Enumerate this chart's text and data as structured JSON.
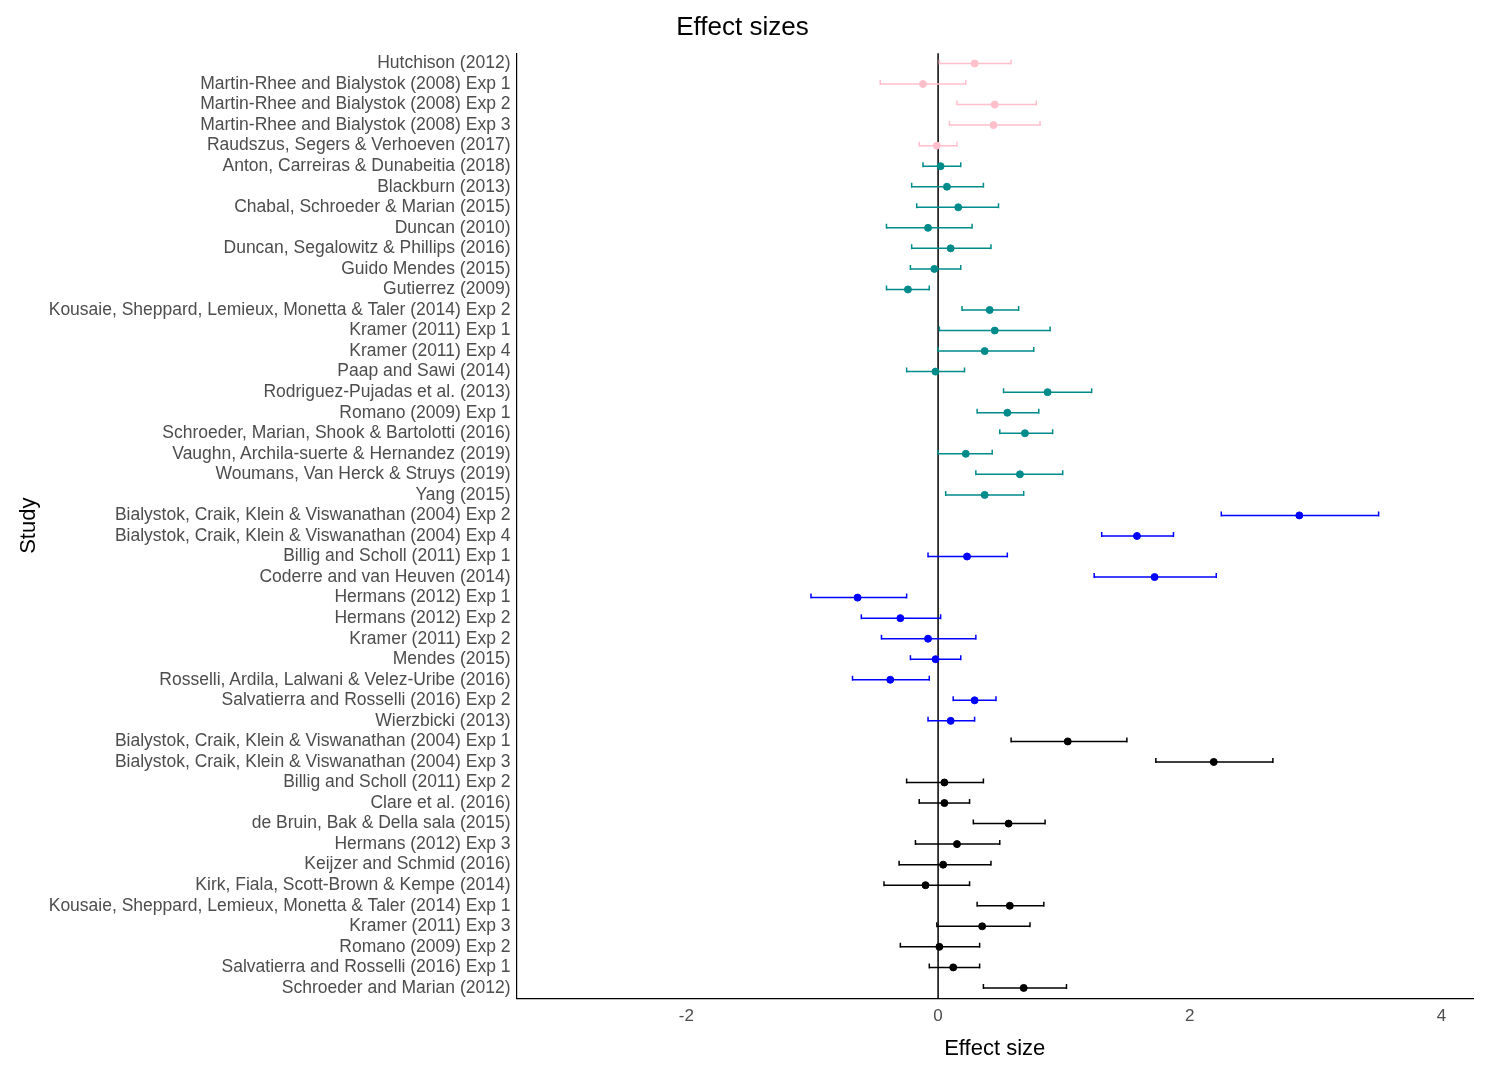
{
  "chart_data": {
    "type": "scatter",
    "title": "Effect sizes",
    "xlabel": "Effect size",
    "ylabel": "Study",
    "orientation": "horizontal",
    "marker": "circle",
    "grid": false,
    "legend": false,
    "categories": [
      "Hutchison (2012)",
      "Martin-Rhee and Bialystok (2008) Exp 1",
      "Martin-Rhee and Bialystok (2008) Exp 2",
      "Martin-Rhee and Bialystok (2008) Exp 3",
      "Raudszus, Segers & Verhoeven (2017)",
      "Anton, Carreiras & Dunabeitia (2018)",
      "Blackburn (2013)",
      "Chabal, Schroeder & Marian (2015)",
      "Duncan (2010)",
      "Duncan, Segalowitz & Phillips (2016)",
      "Guido Mendes (2015)",
      "Gutierrez (2009)",
      "Kousaie, Sheppard, Lemieux, Monetta & Taler (2014) Exp 2",
      "Kramer (2011) Exp 1",
      "Kramer (2011) Exp 4",
      "Paap and Sawi (2014)",
      "Rodriguez-Pujadas et al. (2013)",
      "Romano (2009) Exp 1",
      "Schroeder, Marian, Shook & Bartolotti (2016)",
      "Vaughn, Archila-suerte & Hernandez (2019)",
      "Woumans, Van Herck & Struys (2019)",
      "Yang (2015)",
      "Bialystok, Craik, Klein & Viswanathan (2004) Exp 2",
      "Bialystok, Craik, Klein & Viswanathan (2004) Exp 4",
      "Billig and Scholl (2011) Exp 1",
      "Coderre and van Heuven (2014)",
      "Hermans (2012) Exp 1",
      "Hermans (2012) Exp 2",
      "Kramer (2011) Exp 2",
      "Mendes (2015)",
      "Rosselli, Ardila, Lalwani & Velez-Uribe (2016)",
      "Salvatierra and Rosselli (2016) Exp 2",
      "Wierzbicki (2013)",
      "Bialystok, Craik, Klein & Viswanathan (2004) Exp 1",
      "Bialystok, Craik, Klein & Viswanathan (2004) Exp 3",
      "Billig and Scholl (2011) Exp 2",
      "Clare et al. (2016)",
      "de Bruin, Bak & Della sala (2015)",
      "Hermans (2012) Exp 3",
      "Keijzer and Schmid (2016)",
      "Kirk, Fiala, Scott-Brown & Kempe (2014)",
      "Kousaie, Sheppard, Lemieux, Monetta & Taler (2014) Exp 1",
      "Kramer (2011) Exp 3",
      "Romano (2009) Exp 2",
      "Salvatierra and Rosselli (2016) Exp 1",
      "Schroeder and Marian (2012)"
    ],
    "values": [
      0.29,
      -0.12,
      0.45,
      0.44,
      -0.01,
      0.02,
      0.07,
      0.16,
      -0.08,
      0.1,
      -0.03,
      -0.24,
      0.41,
      0.45,
      0.37,
      -0.02,
      0.87,
      0.55,
      0.69,
      0.22,
      0.65,
      0.37,
      2.87,
      1.58,
      0.23,
      1.72,
      -0.64,
      -0.3,
      -0.08,
      -0.02,
      -0.38,
      0.29,
      0.1,
      1.03,
      2.19,
      0.05,
      0.05,
      0.56,
      0.15,
      0.04,
      -0.1,
      0.57,
      0.35,
      0.01,
      0.12,
      0.68
    ],
    "errors": [
      [
        0.01,
        0.58
      ],
      [
        -0.46,
        0.22
      ],
      [
        0.15,
        0.78
      ],
      [
        0.09,
        0.81
      ],
      [
        -0.15,
        0.15
      ],
      [
        -0.12,
        0.18
      ],
      [
        -0.21,
        0.36
      ],
      [
        -0.17,
        0.48
      ],
      [
        -0.41,
        0.27
      ],
      [
        -0.21,
        0.42
      ],
      [
        -0.22,
        0.18
      ],
      [
        -0.41,
        -0.07
      ],
      [
        0.19,
        0.64
      ],
      [
        0.01,
        0.89
      ],
      [
        0,
        0.76
      ],
      [
        -0.25,
        0.21
      ],
      [
        0.52,
        1.22
      ],
      [
        0.31,
        0.8
      ],
      [
        0.49,
        0.91
      ],
      [
        0,
        0.43
      ],
      [
        0.3,
        0.99
      ],
      [
        0.06,
        0.68
      ],
      [
        2.25,
        3.5
      ],
      [
        1.3,
        1.87
      ],
      [
        -0.08,
        0.55
      ],
      [
        1.24,
        2.21
      ],
      [
        -1.01,
        -0.25
      ],
      [
        -0.61,
        0.02
      ],
      [
        -0.45,
        0.3
      ],
      [
        -0.22,
        0.18
      ],
      [
        -0.68,
        -0.07
      ],
      [
        0.12,
        0.46
      ],
      [
        -0.08,
        0.29
      ],
      [
        0.58,
        1.5
      ],
      [
        1.73,
        2.66
      ],
      [
        -0.25,
        0.36
      ],
      [
        -0.15,
        0.25
      ],
      [
        0.28,
        0.85
      ],
      [
        -0.18,
        0.49
      ],
      [
        -0.31,
        0.42
      ],
      [
        -0.43,
        0.25
      ],
      [
        0.31,
        0.84
      ],
      [
        -0.01,
        0.73
      ],
      [
        -0.3,
        0.33
      ],
      [
        -0.07,
        0.33
      ],
      [
        0.36,
        1.02
      ]
    ],
    "colors": [
      "#ffc0cb",
      "#ffc0cb",
      "#ffc0cb",
      "#ffc0cb",
      "#ffc0cb",
      "#008b8b",
      "#008b8b",
      "#008b8b",
      "#008b8b",
      "#008b8b",
      "#008b8b",
      "#008b8b",
      "#008b8b",
      "#008b8b",
      "#008b8b",
      "#008b8b",
      "#008b8b",
      "#008b8b",
      "#008b8b",
      "#008b8b",
      "#008b8b",
      "#008b8b",
      "#0000ff",
      "#0000ff",
      "#0000ff",
      "#0000ff",
      "#0000ff",
      "#0000ff",
      "#0000ff",
      "#0000ff",
      "#0000ff",
      "#0000ff",
      "#0000ff",
      "#000000",
      "#000000",
      "#000000",
      "#000000",
      "#000000",
      "#000000",
      "#000000",
      "#000000",
      "#000000",
      "#000000",
      "#000000",
      "#000000",
      "#000000"
    ],
    "xlim": [
      -3.35,
      4.25
    ],
    "xticks": [
      -2,
      0,
      2,
      4
    ],
    "ref_lines": [
      {
        "axis": "x",
        "value": 0,
        "color": "#000000"
      }
    ]
  }
}
